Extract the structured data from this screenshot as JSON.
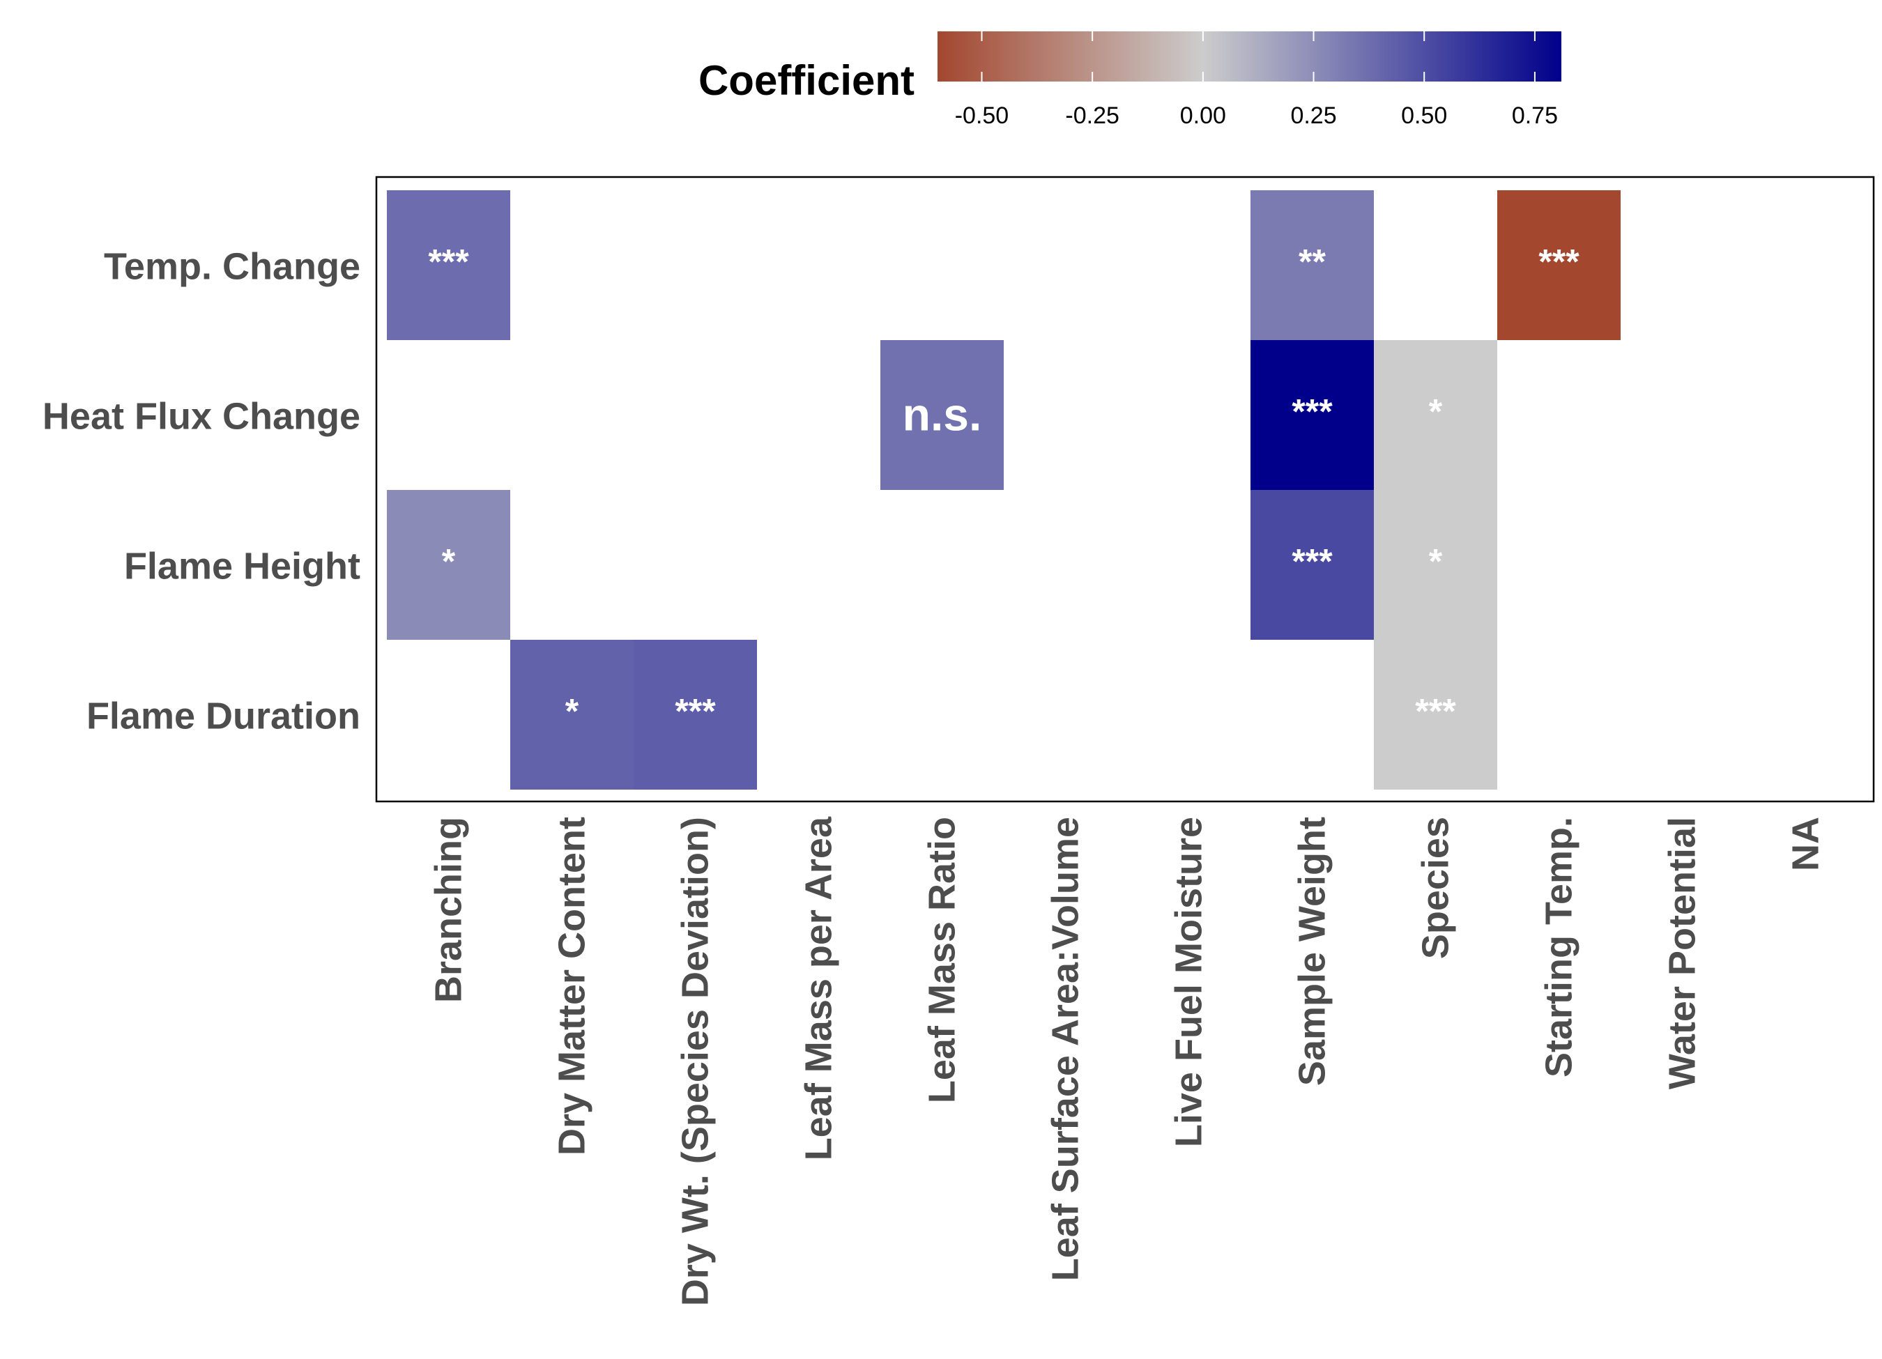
{
  "chart_data": {
    "type": "heatmap",
    "rows": [
      "Temp. Change",
      "Heat Flux Change",
      "Flame Height",
      "Flame Duration"
    ],
    "columns": [
      "Branching",
      "Dry Matter Content",
      "Dry Wt. (Species Deviation)",
      "Leaf Mass per Area",
      "Leaf Mass Ratio",
      "Leaf Surface Area:Volume",
      "Live Fuel Moisture",
      "Sample Weight",
      "Species",
      "Starting Temp.",
      "Water Potential",
      "NA"
    ],
    "cells": [
      {
        "row": "Temp. Change",
        "col": "Branching",
        "value": 0.38,
        "label": "***"
      },
      {
        "row": "Temp. Change",
        "col": "Sample Weight",
        "value": 0.32,
        "label": "**"
      },
      {
        "row": "Temp. Change",
        "col": "Starting Temp.",
        "value": -0.6,
        "label": "***"
      },
      {
        "row": "Heat Flux Change",
        "col": "Leaf Mass Ratio",
        "value": 0.36,
        "label": "n.s."
      },
      {
        "row": "Heat Flux Change",
        "col": "Sample Weight",
        "value": 0.81,
        "label": "***"
      },
      {
        "row": "Heat Flux Change",
        "col": "Species",
        "value": 0.0,
        "label": "*"
      },
      {
        "row": "Flame Height",
        "col": "Branching",
        "value": 0.26,
        "label": "*"
      },
      {
        "row": "Flame Height",
        "col": "Sample Weight",
        "value": 0.52,
        "label": "***"
      },
      {
        "row": "Flame Height",
        "col": "Species",
        "value": 0.0,
        "label": "*"
      },
      {
        "row": "Flame Duration",
        "col": "Dry Matter Content",
        "value": 0.42,
        "label": "*"
      },
      {
        "row": "Flame Duration",
        "col": "Dry Wt. (Species Deviation)",
        "value": 0.44,
        "label": "***"
      },
      {
        "row": "Flame Duration",
        "col": "Species",
        "value": 0.0,
        "label": "***"
      }
    ],
    "legend": {
      "title": "Coefficient",
      "range": [
        -0.6,
        0.81
      ],
      "ticks": [
        -0.5,
        -0.25,
        0.0,
        0.25,
        0.5,
        0.75
      ],
      "tick_labels": [
        "-0.50",
        "-0.25",
        "0.00",
        "0.25",
        "0.50",
        "0.75"
      ],
      "placement": "top",
      "low_color": "#a3472f",
      "mid_color": "#cccccc",
      "high_color": "#00008b"
    }
  }
}
